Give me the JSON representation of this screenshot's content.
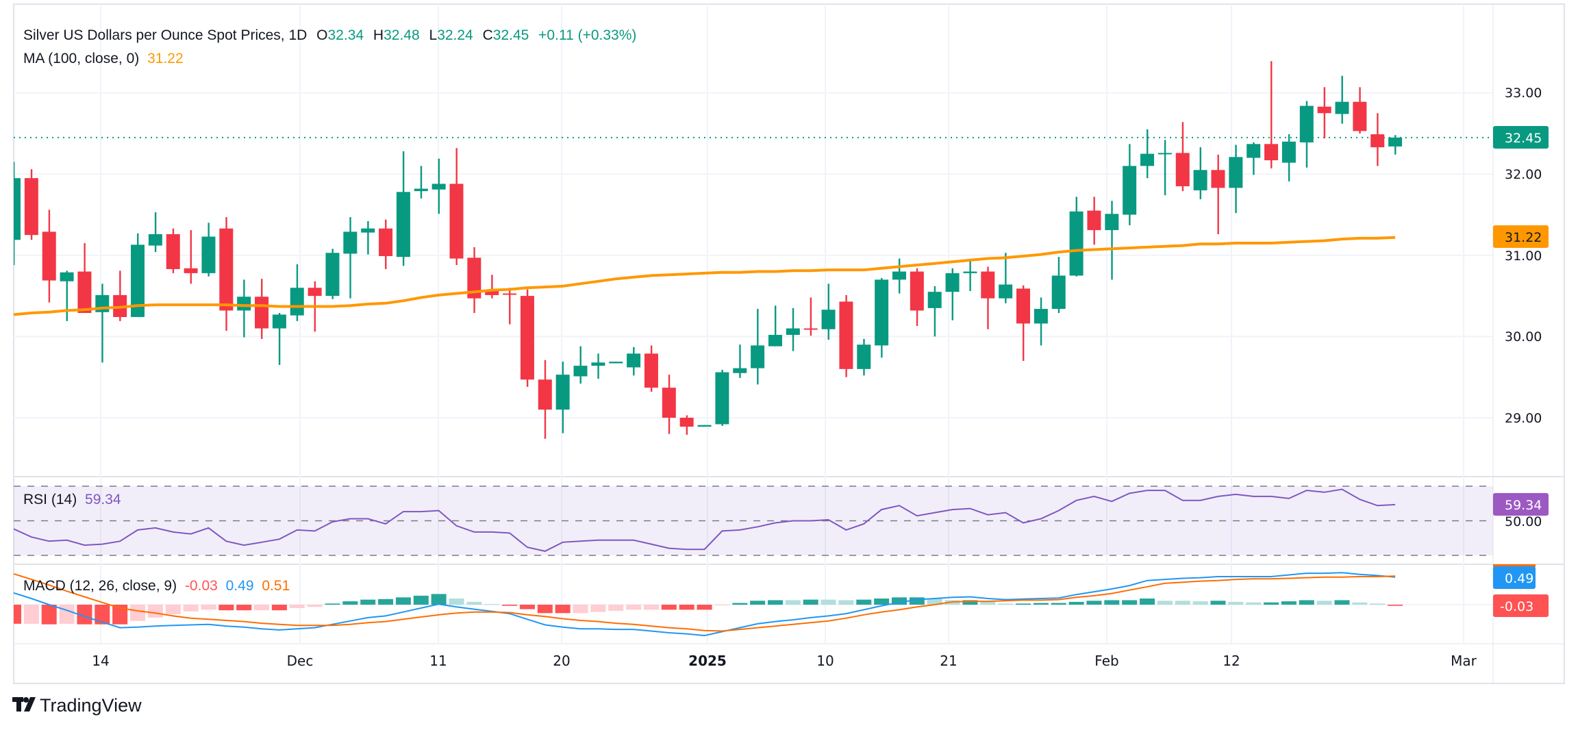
{
  "header": {
    "symbol_title": "Silver US Dollars per Ounce Spot Prices, 1D",
    "open_label": "O",
    "open": "32.34",
    "high_label": "H",
    "high": "32.48",
    "low_label": "L",
    "low": "32.24",
    "close_label": "C",
    "close": "32.45",
    "change": "+0.11 (+0.33%)",
    "ma_label": "MA (100, close, 0)",
    "ma_value": "31.22"
  },
  "rsi_header": {
    "label": "RSI (14)",
    "value": "59.34"
  },
  "macd_header": {
    "label": "MACD (12, 26, close, 9)",
    "hist": "-0.03",
    "macd": "0.49",
    "signal": "0.51"
  },
  "price_axis": {
    "ticks": [
      "33.00",
      "32.00",
      "31.00",
      "30.00",
      "29.00"
    ],
    "rsi_tick": "50.00"
  },
  "badges": {
    "last_price": "32.45",
    "ma": "31.22",
    "rsi": "59.34",
    "macd": "0.49",
    "hist": "-0.03"
  },
  "time_axis": {
    "ticks": [
      "14",
      "Dec",
      "11",
      "20",
      "2025",
      "10",
      "21",
      "Feb",
      "12",
      "Mar"
    ]
  },
  "brand": {
    "name": "TradingView"
  },
  "colors": {
    "up": "#089981",
    "down": "#f23645",
    "ma": "#ff9800",
    "rsi": "#7e57c2",
    "macd": "#2196f3",
    "signal": "#ff6d00",
    "hist_up_strong": "#26a69a",
    "hist_up_weak": "#b2dfdb",
    "hist_down_strong": "#ff5252",
    "hist_down_weak": "#ffcdd2"
  },
  "chart_data": {
    "type": "candlestick",
    "title": "Silver US Dollars per Ounce Spot Prices, 1D",
    "ylim": [
      28.4,
      33.5
    ],
    "grid": true,
    "last_price": 32.45,
    "ohlc": [
      [
        31.19,
        32.15,
        30.88,
        31.95
      ],
      [
        31.95,
        32.06,
        31.19,
        31.25
      ],
      [
        31.29,
        31.56,
        30.42,
        30.69
      ],
      [
        30.68,
        30.81,
        30.19,
        30.79
      ],
      [
        30.8,
        31.15,
        30.29,
        30.29
      ],
      [
        30.3,
        30.65,
        29.68,
        30.51
      ],
      [
        30.51,
        30.81,
        30.19,
        30.24
      ],
      [
        30.24,
        31.27,
        30.24,
        31.13
      ],
      [
        31.12,
        31.53,
        31.04,
        31.26
      ],
      [
        31.26,
        31.33,
        30.78,
        30.83
      ],
      [
        30.84,
        31.31,
        30.65,
        30.78
      ],
      [
        30.78,
        31.4,
        30.74,
        31.23
      ],
      [
        31.33,
        31.47,
        30.07,
        30.32
      ],
      [
        30.32,
        30.7,
        29.99,
        30.49
      ],
      [
        30.49,
        30.71,
        29.97,
        30.1
      ],
      [
        30.1,
        30.29,
        29.65,
        30.27
      ],
      [
        30.26,
        30.89,
        30.19,
        30.6
      ],
      [
        30.6,
        30.68,
        30.06,
        30.5
      ],
      [
        30.5,
        31.08,
        30.46,
        31.03
      ],
      [
        31.02,
        31.47,
        30.47,
        31.29
      ],
      [
        31.28,
        31.42,
        31.01,
        31.33
      ],
      [
        31.33,
        31.44,
        30.83,
        30.99
      ],
      [
        30.98,
        32.28,
        30.87,
        31.78
      ],
      [
        31.79,
        32.1,
        31.7,
        31.82
      ],
      [
        31.81,
        32.19,
        31.51,
        31.88
      ],
      [
        31.88,
        32.32,
        30.88,
        30.96
      ],
      [
        30.97,
        31.1,
        30.29,
        30.47
      ],
      [
        30.57,
        30.76,
        30.47,
        30.51
      ],
      [
        30.53,
        30.6,
        30.15,
        30.52
      ],
      [
        30.5,
        30.58,
        29.38,
        29.47
      ],
      [
        29.47,
        29.71,
        28.74,
        29.1
      ],
      [
        29.1,
        29.69,
        28.81,
        29.53
      ],
      [
        29.51,
        29.88,
        29.42,
        29.64
      ],
      [
        29.64,
        29.79,
        29.48,
        29.68
      ],
      [
        29.67,
        29.69,
        29.67,
        29.69
      ],
      [
        29.62,
        29.87,
        29.52,
        29.79
      ],
      [
        29.79,
        29.89,
        29.32,
        29.37
      ],
      [
        29.37,
        29.53,
        28.8,
        29.0
      ],
      [
        29.0,
        29.03,
        28.79,
        28.89
      ],
      [
        28.89,
        28.91,
        28.89,
        28.91
      ],
      [
        28.92,
        29.59,
        28.9,
        29.56
      ],
      [
        29.55,
        29.9,
        29.49,
        29.61
      ],
      [
        29.61,
        30.34,
        29.41,
        29.89
      ],
      [
        29.88,
        30.38,
        29.88,
        30.02
      ],
      [
        30.02,
        30.35,
        29.82,
        30.1
      ],
      [
        30.1,
        30.48,
        30.01,
        30.09
      ],
      [
        30.09,
        30.65,
        29.96,
        30.33
      ],
      [
        30.43,
        30.51,
        29.5,
        29.6
      ],
      [
        29.6,
        29.97,
        29.52,
        29.9
      ],
      [
        29.89,
        30.72,
        29.74,
        30.7
      ],
      [
        30.7,
        30.96,
        30.53,
        30.8
      ],
      [
        30.8,
        30.84,
        30.13,
        30.32
      ],
      [
        30.35,
        30.62,
        30.0,
        30.55
      ],
      [
        30.55,
        30.84,
        30.2,
        30.78
      ],
      [
        30.78,
        30.95,
        30.56,
        30.8
      ],
      [
        30.8,
        30.86,
        30.09,
        30.47
      ],
      [
        30.47,
        31.03,
        30.41,
        30.64
      ],
      [
        30.59,
        30.63,
        29.7,
        30.16
      ],
      [
        30.16,
        30.48,
        29.89,
        30.34
      ],
      [
        30.34,
        30.98,
        30.29,
        30.75
      ],
      [
        30.75,
        31.72,
        30.74,
        31.54
      ],
      [
        31.55,
        31.72,
        31.13,
        31.31
      ],
      [
        31.31,
        31.67,
        30.7,
        31.51
      ],
      [
        31.5,
        32.37,
        31.37,
        32.1
      ],
      [
        32.1,
        32.55,
        31.95,
        32.25
      ],
      [
        32.25,
        32.42,
        31.74,
        32.26
      ],
      [
        32.26,
        32.64,
        31.79,
        31.85
      ],
      [
        31.8,
        32.33,
        31.69,
        32.05
      ],
      [
        32.05,
        32.24,
        31.26,
        31.83
      ],
      [
        31.83,
        32.36,
        31.52,
        32.21
      ],
      [
        32.2,
        32.39,
        31.99,
        32.37
      ],
      [
        32.37,
        33.39,
        32.07,
        32.17
      ],
      [
        32.14,
        32.49,
        31.91,
        32.4
      ],
      [
        32.39,
        32.9,
        32.08,
        32.84
      ],
      [
        32.83,
        33.07,
        32.44,
        32.75
      ],
      [
        32.74,
        33.21,
        32.62,
        32.89
      ],
      [
        32.89,
        33.07,
        32.5,
        32.53
      ],
      [
        32.49,
        32.75,
        32.1,
        32.33
      ],
      [
        32.34,
        32.48,
        32.24,
        32.45
      ]
    ],
    "ma100": [
      30.27,
      30.29,
      30.3,
      30.32,
      30.33,
      30.35,
      30.36,
      30.38,
      30.39,
      30.39,
      30.39,
      30.39,
      30.39,
      30.38,
      30.38,
      30.37,
      30.37,
      30.37,
      30.37,
      30.38,
      30.4,
      30.41,
      30.44,
      30.48,
      30.51,
      30.53,
      30.55,
      30.57,
      30.58,
      30.6,
      30.61,
      30.62,
      30.65,
      30.68,
      30.71,
      30.73,
      30.75,
      30.76,
      30.77,
      30.78,
      30.79,
      30.79,
      30.8,
      30.8,
      30.81,
      30.81,
      30.82,
      30.82,
      30.82,
      30.84,
      30.86,
      30.88,
      30.9,
      30.92,
      30.94,
      30.96,
      30.97,
      30.99,
      31.01,
      31.04,
      31.06,
      31.07,
      31.08,
      31.09,
      31.1,
      31.11,
      31.12,
      31.14,
      31.14,
      31.15,
      31.15,
      31.15,
      31.16,
      31.17,
      31.18,
      31.2,
      31.21,
      31.21,
      31.22
    ],
    "rsi": {
      "ylim": [
        30,
        70
      ],
      "bands": [
        70,
        50,
        30
      ],
      "values": [
        45.3,
        40.6,
        38.2,
        38.8,
        35.9,
        36.5,
        38.2,
        44.7,
        45.9,
        43.5,
        42.4,
        45.9,
        38.2,
        35.9,
        37.6,
        39.4,
        44.7,
        44.1,
        49.4,
        51.2,
        51.2,
        48.2,
        55.3,
        55.3,
        55.9,
        47.1,
        43.5,
        43.5,
        42.9,
        34.7,
        32.4,
        37.6,
        38.2,
        38.8,
        38.8,
        38.8,
        36.5,
        34.1,
        33.5,
        33.5,
        44.1,
        44.7,
        46.5,
        48.8,
        50.0,
        50.0,
        50.6,
        44.7,
        48.2,
        56.5,
        58.8,
        52.9,
        54.7,
        56.5,
        57.1,
        53.5,
        54.7,
        48.8,
        51.2,
        55.9,
        61.8,
        64.1,
        61.2,
        65.9,
        67.6,
        67.6,
        61.8,
        61.8,
        64.1,
        65.3,
        64.1,
        64.1,
        62.9,
        67.6,
        66.5,
        68.2,
        62.4,
        58.8,
        59.34
      ]
    },
    "macd": {
      "macd": [
        0.21,
        0.11,
        0.0,
        -0.1,
        -0.21,
        -0.31,
        -0.41,
        -0.4,
        -0.38,
        -0.37,
        -0.36,
        -0.35,
        -0.38,
        -0.4,
        -0.43,
        -0.45,
        -0.43,
        -0.41,
        -0.35,
        -0.29,
        -0.23,
        -0.2,
        -0.13,
        -0.06,
        0.01,
        -0.04,
        -0.08,
        -0.12,
        -0.16,
        -0.26,
        -0.36,
        -0.4,
        -0.43,
        -0.43,
        -0.44,
        -0.44,
        -0.47,
        -0.5,
        -0.52,
        -0.55,
        -0.48,
        -0.41,
        -0.34,
        -0.3,
        -0.27,
        -0.23,
        -0.2,
        -0.16,
        -0.09,
        -0.02,
        0.04,
        0.09,
        0.11,
        0.13,
        0.14,
        0.11,
        0.09,
        0.1,
        0.11,
        0.12,
        0.18,
        0.23,
        0.28,
        0.34,
        0.43,
        0.45,
        0.47,
        0.48,
        0.5,
        0.5,
        0.5,
        0.5,
        0.53,
        0.56,
        0.56,
        0.57,
        0.54,
        0.52,
        0.49
      ],
      "signal": [
        0.55,
        0.45,
        0.35,
        0.24,
        0.14,
        0.04,
        -0.06,
        -0.11,
        -0.15,
        -0.2,
        -0.24,
        -0.26,
        -0.28,
        -0.3,
        -0.33,
        -0.35,
        -0.37,
        -0.37,
        -0.37,
        -0.35,
        -0.32,
        -0.3,
        -0.26,
        -0.22,
        -0.18,
        -0.15,
        -0.13,
        -0.13,
        -0.14,
        -0.18,
        -0.21,
        -0.25,
        -0.28,
        -0.3,
        -0.33,
        -0.35,
        -0.38,
        -0.41,
        -0.43,
        -0.46,
        -0.47,
        -0.44,
        -0.41,
        -0.38,
        -0.35,
        -0.32,
        -0.29,
        -0.24,
        -0.18,
        -0.13,
        -0.09,
        -0.04,
        0.0,
        0.05,
        0.06,
        0.06,
        0.07,
        0.08,
        0.08,
        0.09,
        0.13,
        0.16,
        0.2,
        0.26,
        0.32,
        0.38,
        0.4,
        0.42,
        0.43,
        0.45,
        0.46,
        0.46,
        0.47,
        0.48,
        0.49,
        0.49,
        0.5,
        0.5,
        0.51
      ]
    }
  }
}
